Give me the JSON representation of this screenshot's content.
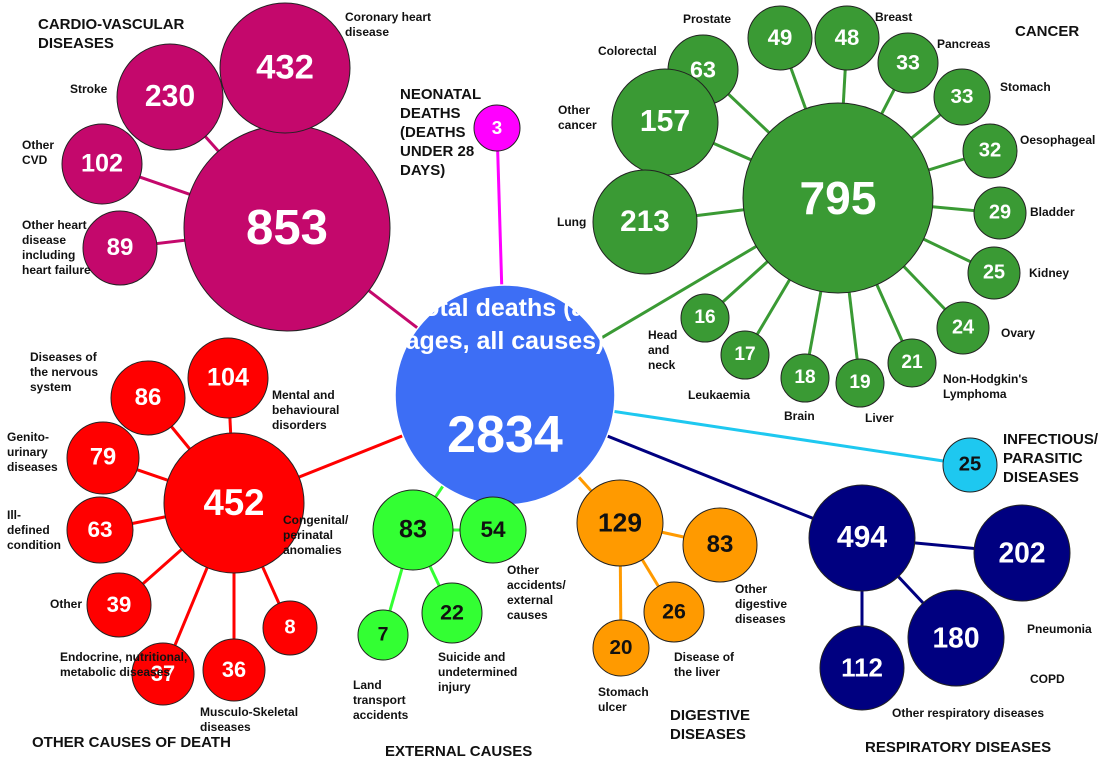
{
  "center": {
    "label": "Total deaths (all ages, all causes)",
    "value": 2834,
    "color": "#3d6ef5"
  },
  "groups": [
    {
      "name": "CARDIO-VASCULAR DISEASES",
      "value": 853,
      "color": "#c4086c",
      "text_color": "#ffffff",
      "items": [
        {
          "label": "Coronary heart disease",
          "value": 432
        },
        {
          "label": "Stroke",
          "value": 230
        },
        {
          "label": "Other CVD",
          "value": 102
        },
        {
          "label": "Other heart disease including heart failure",
          "value": 89
        }
      ]
    },
    {
      "name": "NEONATAL DEATHS (DEATHS UNDER 28 DAYS)",
      "value": 3,
      "color": "#ff00ff",
      "text_color": "#ffffff",
      "items": []
    },
    {
      "name": "CANCER",
      "value": 795,
      "color": "#3a9a34",
      "text_color": "#ffffff",
      "items": [
        {
          "label": "Prostate",
          "value": 49
        },
        {
          "label": "Breast",
          "value": 48
        },
        {
          "label": "Colorectal",
          "value": 63
        },
        {
          "label": "Pancreas",
          "value": 33
        },
        {
          "label": "Stomach",
          "value": 33
        },
        {
          "label": "Other cancer",
          "value": 157
        },
        {
          "label": "Oesophageal",
          "value": 32
        },
        {
          "label": "Lung",
          "value": 213
        },
        {
          "label": "Bladder",
          "value": 29
        },
        {
          "label": "Kidney",
          "value": 25
        },
        {
          "label": "Ovary",
          "value": 24
        },
        {
          "label": "Non-Hodgkin's Lymphoma",
          "value": 21
        },
        {
          "label": "Liver",
          "value": 19
        },
        {
          "label": "Brain",
          "value": 18
        },
        {
          "label": "Leukaemia",
          "value": 17
        },
        {
          "label": "Head and neck",
          "value": 16
        }
      ]
    },
    {
      "name": "INFECTIOUS/ PARASITIC DISEASES",
      "value": 25,
      "color": "#1ec8f0",
      "text_color": "#111111",
      "items": []
    },
    {
      "name": "RESPIRATORY DISEASES",
      "value": 494,
      "color": "#000080",
      "text_color": "#ffffff",
      "items": [
        {
          "label": "Pneumonia",
          "value": 202
        },
        {
          "label": "COPD",
          "value": 180
        },
        {
          "label": "Other respiratory diseases",
          "value": 112
        }
      ]
    },
    {
      "name": "DIGESTIVE DISEASES",
      "value": 129,
      "color": "#ff9a00",
      "text_color": "#111111",
      "items": [
        {
          "label": "Other digestive diseases",
          "value": 83
        },
        {
          "label": "Disease of the liver",
          "value": 26
        },
        {
          "label": "Stomach ulcer",
          "value": 20
        }
      ]
    },
    {
      "name": "EXTERNAL CAUSES",
      "value": 83,
      "color": "#33ff33",
      "text_color": "#111111",
      "items": [
        {
          "label": "Other accidents/ external causes",
          "value": 54
        },
        {
          "label": "Suicide and undetermined injury",
          "value": 22
        },
        {
          "label": "Land transport accidents",
          "value": 7
        }
      ]
    },
    {
      "name": "OTHER CAUSES OF DEATH",
      "value": 452,
      "color": "#ff0000",
      "text_color": "#ffffff",
      "items": [
        {
          "label": "Mental and behavioural disorders",
          "value": 104
        },
        {
          "label": "Diseases of the nervous system",
          "value": 86
        },
        {
          "label": "Genito-urinary diseases",
          "value": 79
        },
        {
          "label": "Ill-defined condition",
          "value": 63
        },
        {
          "label": "Other",
          "value": 39
        },
        {
          "label": "Endocrine, nutritional, metabolic diseases",
          "value": 37
        },
        {
          "label": "Musculo-Skeletal diseases",
          "value": 36
        },
        {
          "label": "Congenital/ perinatal anomalies",
          "value": 8
        }
      ]
    }
  ]
}
